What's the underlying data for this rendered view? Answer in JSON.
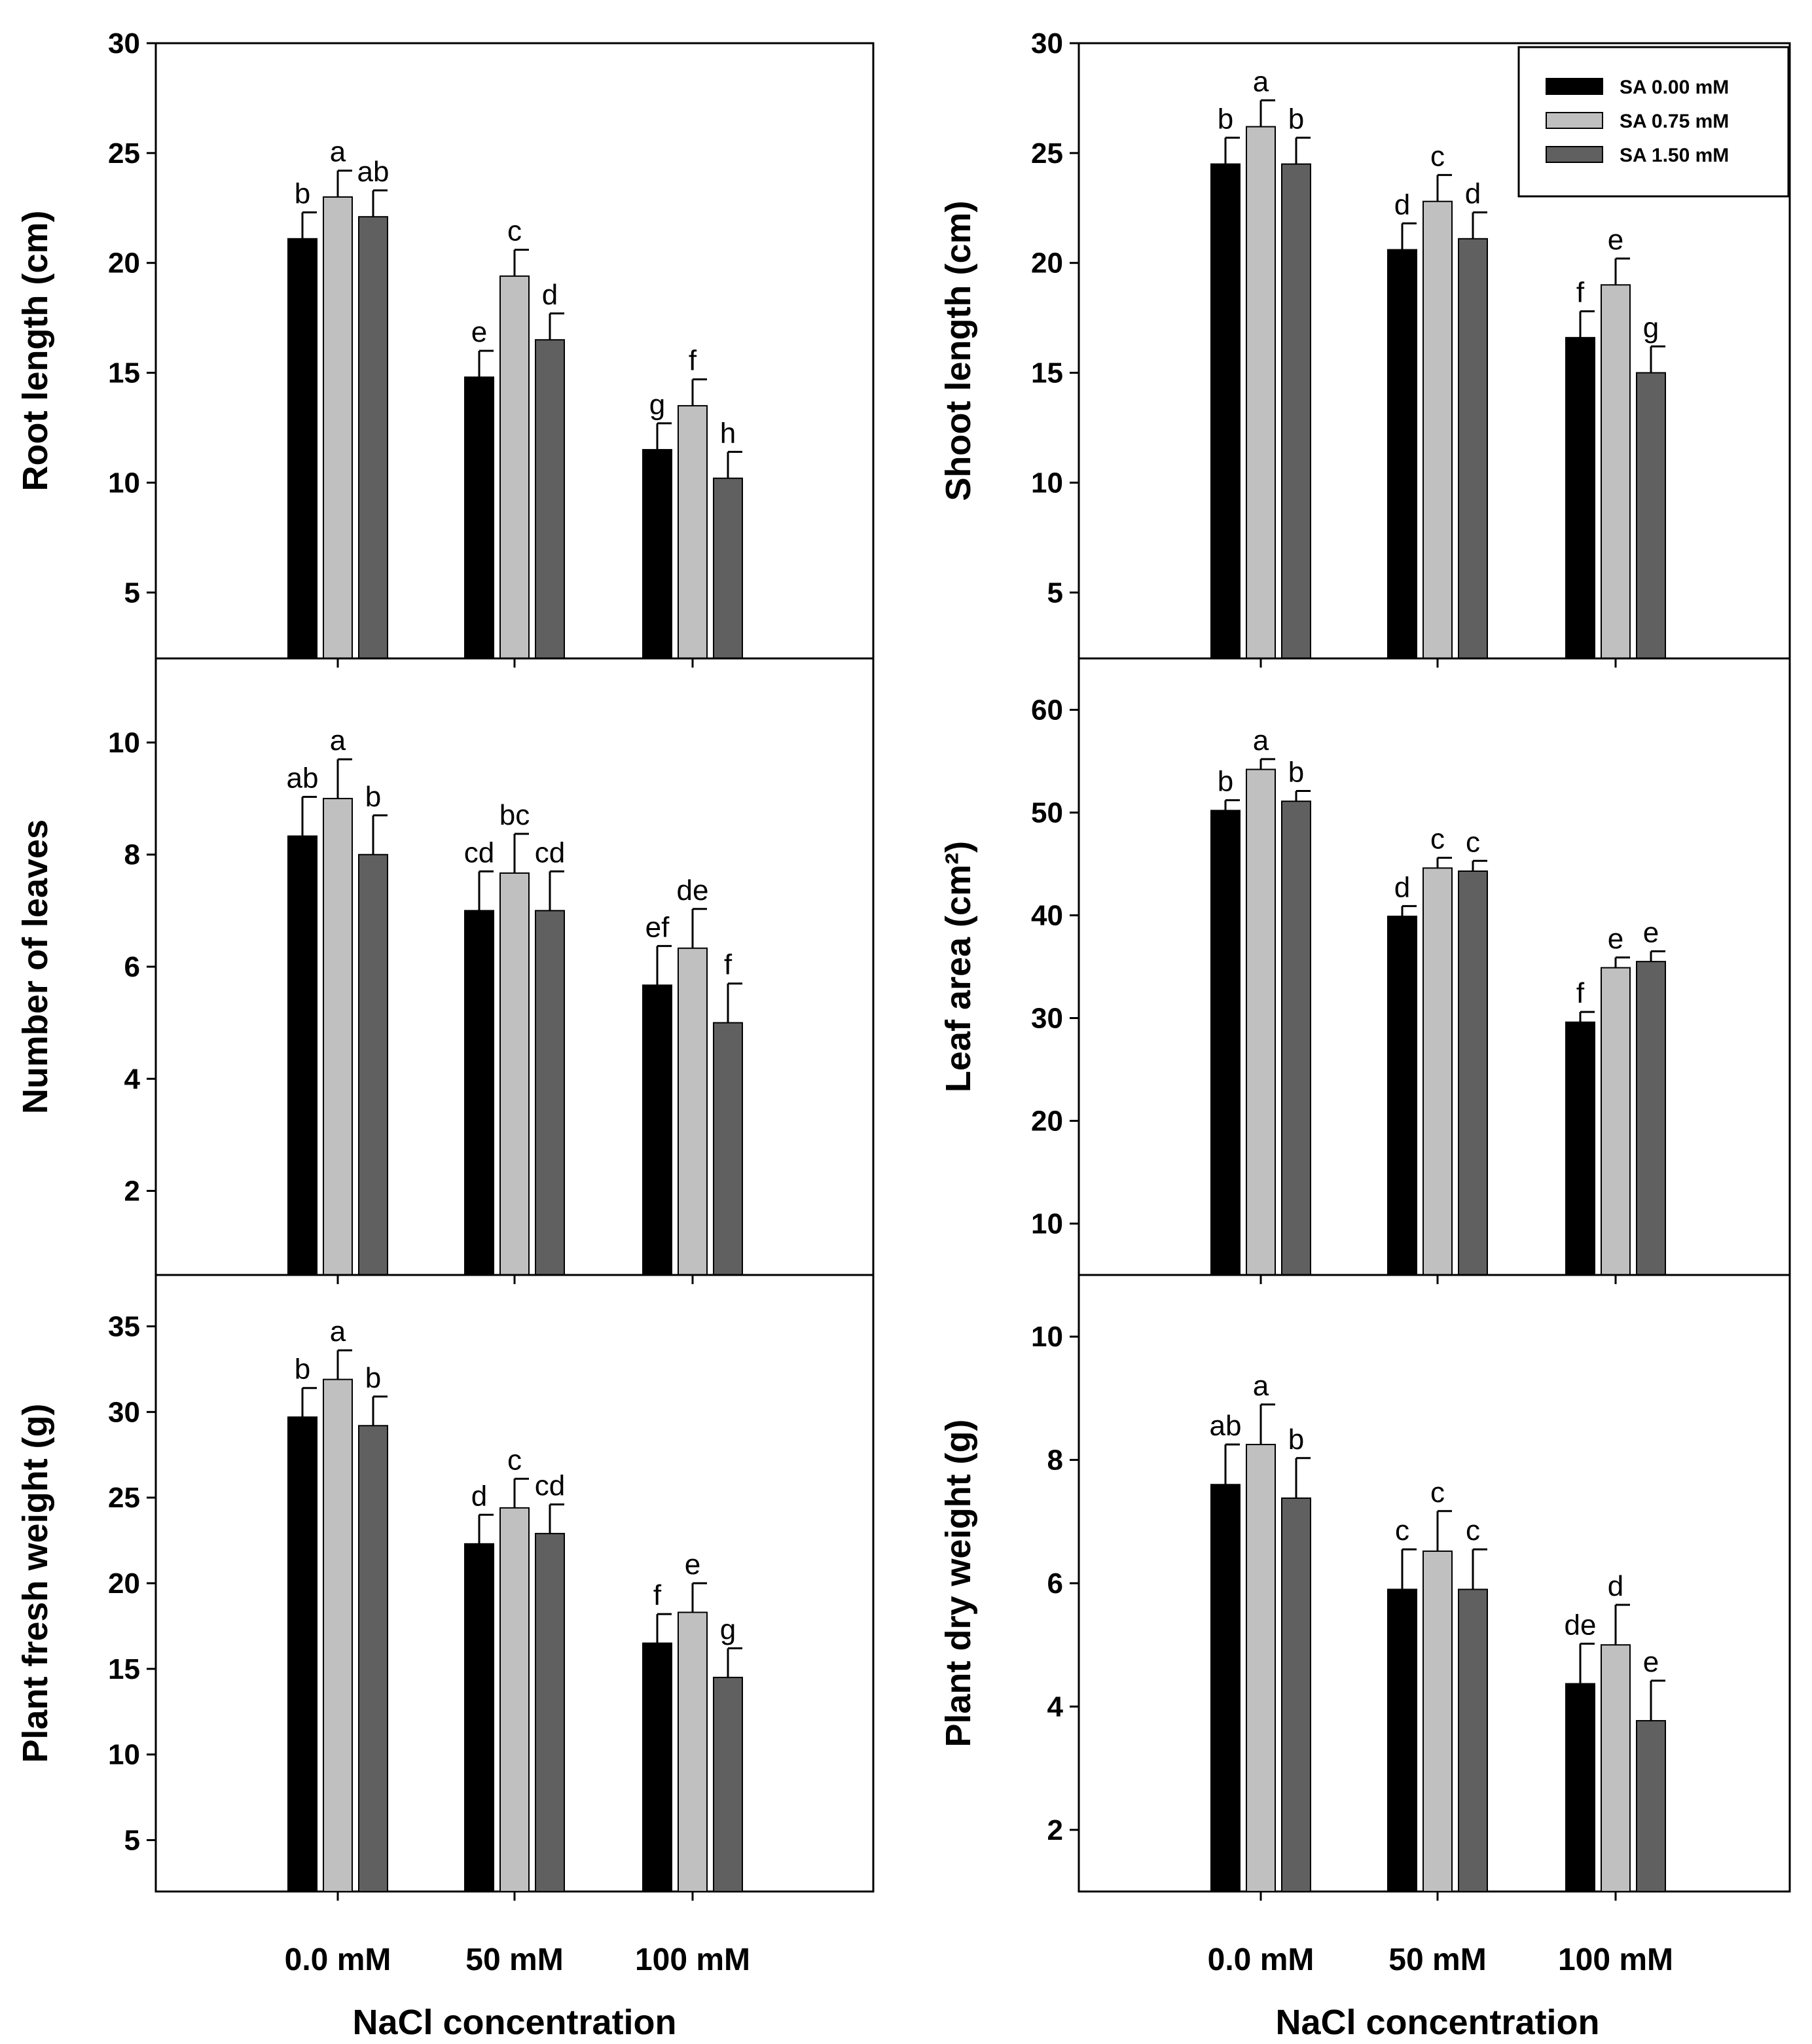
{
  "legend": {
    "placement": "top-right",
    "entries": [
      {
        "label": "SA 0.00 mM",
        "color": "#000000"
      },
      {
        "label": "SA 0.75 mM",
        "color": "#c0c0c0"
      },
      {
        "label": "SA 1.50 mM",
        "color": "#606060"
      }
    ]
  },
  "chart_data": [
    {
      "type": "bar",
      "ylabel": "Root length (cm)",
      "ylim": [
        2,
        30
      ],
      "yticks": [
        5,
        10,
        15,
        20,
        25,
        30
      ],
      "categories": [
        "0.0 mM",
        "50 mM",
        "100 mM"
      ],
      "series": [
        {
          "name": "SA 0.00 mM",
          "values": [
            21.1,
            14.8,
            11.5
          ],
          "errors": [
            1.2,
            1.2,
            1.2
          ],
          "letters": [
            "b",
            "e",
            "g"
          ]
        },
        {
          "name": "SA 0.75 mM",
          "values": [
            23.0,
            19.4,
            13.5
          ],
          "errors": [
            1.2,
            1.2,
            1.2
          ],
          "letters": [
            "a",
            "c",
            "f"
          ]
        },
        {
          "name": "SA 1.50 mM",
          "values": [
            22.1,
            16.5,
            10.2
          ],
          "errors": [
            1.2,
            1.2,
            1.2
          ],
          "letters": [
            "ab",
            "d",
            "h"
          ]
        }
      ],
      "grid": false
    },
    {
      "type": "bar",
      "ylabel": "Shoot length (cm)",
      "ylim": [
        2,
        30
      ],
      "yticks": [
        5,
        10,
        15,
        20,
        25,
        30
      ],
      "categories": [
        "0.0 mM",
        "50 mM",
        "100 mM"
      ],
      "series": [
        {
          "name": "SA 0.00 mM",
          "values": [
            24.5,
            20.6,
            16.6
          ],
          "errors": [
            1.2,
            1.2,
            1.2
          ],
          "letters": [
            "b",
            "d",
            "f"
          ]
        },
        {
          "name": "SA 0.75 mM",
          "values": [
            26.2,
            22.8,
            19.0
          ],
          "errors": [
            1.2,
            1.2,
            1.2
          ],
          "letters": [
            "a",
            "c",
            "e"
          ]
        },
        {
          "name": "SA 1.50 mM",
          "values": [
            24.5,
            21.1,
            15.0
          ],
          "errors": [
            1.2,
            1.2,
            1.2
          ],
          "letters": [
            "b",
            "d",
            "g"
          ]
        }
      ],
      "grid": false
    },
    {
      "type": "bar",
      "ylabel": "Number of leaves",
      "ylim": [
        0.5,
        11.5
      ],
      "yticks": [
        2,
        4,
        6,
        8,
        10
      ],
      "categories": [
        "0.0 mM",
        "50 mM",
        "100 mM"
      ],
      "series": [
        {
          "name": "SA 0.00 mM",
          "values": [
            8.33,
            7.0,
            5.67
          ],
          "errors": [
            0.7,
            0.7,
            0.7
          ],
          "letters": [
            "ab",
            "cd",
            "ef"
          ]
        },
        {
          "name": "SA 0.75 mM",
          "values": [
            9.0,
            7.67,
            6.33
          ],
          "errors": [
            0.7,
            0.7,
            0.7
          ],
          "letters": [
            "a",
            "bc",
            "de"
          ]
        },
        {
          "name": "SA 1.50 mM",
          "values": [
            8.0,
            7.0,
            5.0
          ],
          "errors": [
            0.7,
            0.7,
            0.7
          ],
          "letters": [
            "b",
            "cd",
            "f"
          ]
        }
      ],
      "grid": false
    },
    {
      "type": "bar",
      "ylabel": "Leaf area (cm²)",
      "ylim": [
        5,
        65
      ],
      "yticks": [
        10,
        20,
        30,
        40,
        50,
        60
      ],
      "categories": [
        "0.0 mM",
        "50 mM",
        "100 mM"
      ],
      "series": [
        {
          "name": "SA 0.00 mM",
          "values": [
            50.2,
            39.9,
            29.6
          ],
          "errors": [
            1.0,
            1.0,
            1.0
          ],
          "letters": [
            "b",
            "d",
            "f"
          ]
        },
        {
          "name": "SA 0.75 mM",
          "values": [
            54.2,
            44.6,
            34.9
          ],
          "errors": [
            1.0,
            1.0,
            1.0
          ],
          "letters": [
            "a",
            "c",
            "e"
          ]
        },
        {
          "name": "SA 1.50 mM",
          "values": [
            51.1,
            44.3,
            35.5
          ],
          "errors": [
            1.0,
            1.0,
            1.0
          ],
          "letters": [
            "b",
            "c",
            "e"
          ]
        }
      ],
      "grid": false
    },
    {
      "type": "bar",
      "ylabel": "Plant fresh weight (g)",
      "ylim": [
        2,
        38
      ],
      "yticks": [
        5,
        10,
        15,
        20,
        25,
        30,
        35
      ],
      "categories": [
        "0.0 mM",
        "50 mM",
        "100 mM"
      ],
      "series": [
        {
          "name": "SA 0.00 mM",
          "values": [
            29.7,
            22.3,
            16.5
          ],
          "errors": [
            1.7,
            1.7,
            1.7
          ],
          "letters": [
            "b",
            "d",
            "f"
          ]
        },
        {
          "name": "SA 0.75 mM",
          "values": [
            31.9,
            24.4,
            18.3
          ],
          "errors": [
            1.7,
            1.7,
            1.7
          ],
          "letters": [
            "a",
            "c",
            "e"
          ]
        },
        {
          "name": "SA 1.50 mM",
          "values": [
            29.2,
            22.9,
            14.5
          ],
          "errors": [
            1.7,
            1.7,
            1.7
          ],
          "letters": [
            "b",
            "cd",
            "g"
          ]
        }
      ],
      "grid": false
    },
    {
      "type": "bar",
      "ylabel": "Plant dry weight (g)",
      "ylim": [
        1,
        11
      ],
      "yticks": [
        2,
        4,
        6,
        8,
        10
      ],
      "categories": [
        "0.0 mM",
        "50 mM",
        "100 mM"
      ],
      "series": [
        {
          "name": "SA 0.00 mM",
          "values": [
            7.6,
            5.9,
            4.37
          ],
          "errors": [
            0.65,
            0.65,
            0.65
          ],
          "letters": [
            "ab",
            "c",
            "de"
          ]
        },
        {
          "name": "SA 0.75 mM",
          "values": [
            8.25,
            6.52,
            5.0
          ],
          "errors": [
            0.65,
            0.65,
            0.65
          ],
          "letters": [
            "a",
            "c",
            "d"
          ]
        },
        {
          "name": "SA 1.50 mM",
          "values": [
            7.38,
            5.9,
            3.77
          ],
          "errors": [
            0.65,
            0.65,
            0.65
          ],
          "letters": [
            "b",
            "c",
            "e"
          ]
        }
      ],
      "grid": false
    }
  ],
  "xlabel": "NaCl concentration"
}
